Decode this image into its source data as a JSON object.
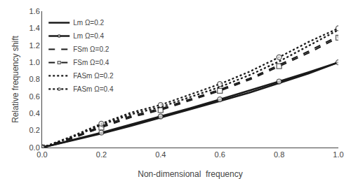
{
  "chart_data": {
    "type": "line",
    "xlabel": "Non-dimensional  frequency",
    "ylabel": "Relative frequency shift",
    "x": [
      0.0,
      0.1,
      0.2,
      0.3,
      0.4,
      0.5,
      0.6,
      0.7,
      0.8,
      0.9,
      1.0
    ],
    "series": [
      {
        "name": "Lm Ω=0.2",
        "color": "#1a1a1a",
        "line_style": "solid",
        "marker": "none",
        "values": [
          0.0,
          0.08,
          0.165,
          0.255,
          0.35,
          0.445,
          0.545,
          0.645,
          0.755,
          0.87,
          1.0
        ]
      },
      {
        "name": "Lm Ω=0.4",
        "color": "#1a1a1a",
        "line_style": "solid",
        "marker": "circle",
        "values": [
          0.0,
          0.085,
          0.175,
          0.27,
          0.365,
          0.462,
          0.565,
          0.668,
          0.775,
          0.885,
          1.0
        ]
      },
      {
        "name": "FSm Ω=0.2",
        "color": "#1a1a1a",
        "line_style": "dashed",
        "marker": "none",
        "values": [
          0.0,
          0.115,
          0.25,
          0.37,
          0.455,
          0.565,
          0.68,
          0.81,
          0.97,
          1.13,
          1.31
        ]
      },
      {
        "name": "FSm Ω=0.4",
        "color": "#1a1a1a",
        "line_style": "dashed",
        "marker": "square",
        "values": [
          0.0,
          0.105,
          0.235,
          0.355,
          0.44,
          0.55,
          0.665,
          0.795,
          0.955,
          1.11,
          1.29
        ]
      },
      {
        "name": "FASm Ω=0.2",
        "color": "#1a1a1a",
        "line_style": "dotted",
        "marker": "none",
        "values": [
          0.0,
          0.12,
          0.265,
          0.39,
          0.475,
          0.59,
          0.71,
          0.85,
          1.01,
          1.195,
          1.38
        ]
      },
      {
        "name": "FASm Ω=0.4",
        "color": "#1a1a1a",
        "line_style": "dotted",
        "marker": "circle",
        "values": [
          0.0,
          0.13,
          0.28,
          0.41,
          0.5,
          0.62,
          0.745,
          0.89,
          1.06,
          1.24,
          1.4
        ]
      }
    ],
    "xlim": [
      0,
      1.0
    ],
    "ylim": [
      0,
      1.6
    ],
    "xticks": [
      {
        "value": 0,
        "label": "0.0"
      },
      0.2,
      0.4,
      0.6,
      0.8,
      {
        "value": 1,
        "label": "1.0"
      }
    ],
    "yticks": [
      {
        "value": 0,
        "label": "0.0"
      },
      0.2,
      0.4,
      0.6,
      0.8,
      {
        "value": 1,
        "label": "1.0"
      },
      1.2,
      1.4,
      1.6
    ],
    "grid": false,
    "legend": "upper left"
  }
}
